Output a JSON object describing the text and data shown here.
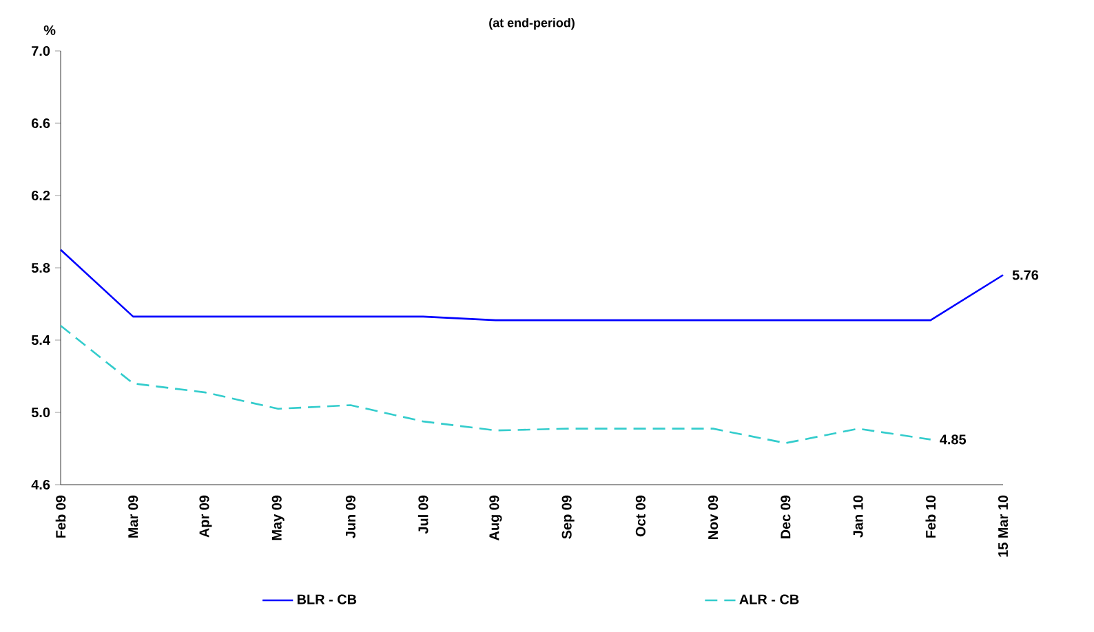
{
  "chart_data": {
    "type": "line",
    "subtitle": "(at end-period)",
    "ylabel": "%",
    "categories": [
      "Feb 09",
      "Mar 09",
      "Apr 09",
      "May 09",
      "Jun 09",
      "Jul 09",
      "Aug 09",
      "Sep 09",
      "Oct 09",
      "Nov 09",
      "Dec 09",
      "Jan 10",
      "Feb 10",
      "15 Mar 10"
    ],
    "series": [
      {
        "name": "BLR - CB",
        "color": "#0000ff",
        "line_style": "solid",
        "values": [
          5.9,
          5.53,
          5.53,
          5.53,
          5.53,
          5.53,
          5.51,
          5.51,
          5.51,
          5.51,
          5.51,
          5.51,
          5.51,
          5.76
        ],
        "value_labels": [
          null,
          null,
          null,
          null,
          null,
          null,
          null,
          null,
          null,
          null,
          null,
          null,
          null,
          "5.76"
        ]
      },
      {
        "name": "ALR - CB",
        "color": "#33cccc",
        "line_style": "dashed",
        "values": [
          5.48,
          5.16,
          5.11,
          5.02,
          5.04,
          4.95,
          4.9,
          4.91,
          4.91,
          4.91,
          4.83,
          4.91,
          4.85,
          null
        ],
        "value_labels": [
          null,
          null,
          null,
          null,
          null,
          null,
          null,
          null,
          null,
          null,
          null,
          null,
          "4.85",
          null
        ]
      }
    ],
    "ylim": [
      4.6,
      7.0
    ],
    "yticks": [
      {
        "value": 4.6,
        "label": "4.6"
      },
      {
        "value": 5.0,
        "label": "5.0"
      },
      {
        "value": 5.4,
        "label": "5.4"
      },
      {
        "value": 5.8,
        "label": "5.8"
      },
      {
        "value": 6.2,
        "label": "6.2"
      },
      {
        "value": 6.6,
        "label": "6.6"
      },
      {
        "value": 7.0,
        "label": "7.0"
      }
    ],
    "grid": false,
    "legend": "bottom",
    "marker": "none"
  }
}
